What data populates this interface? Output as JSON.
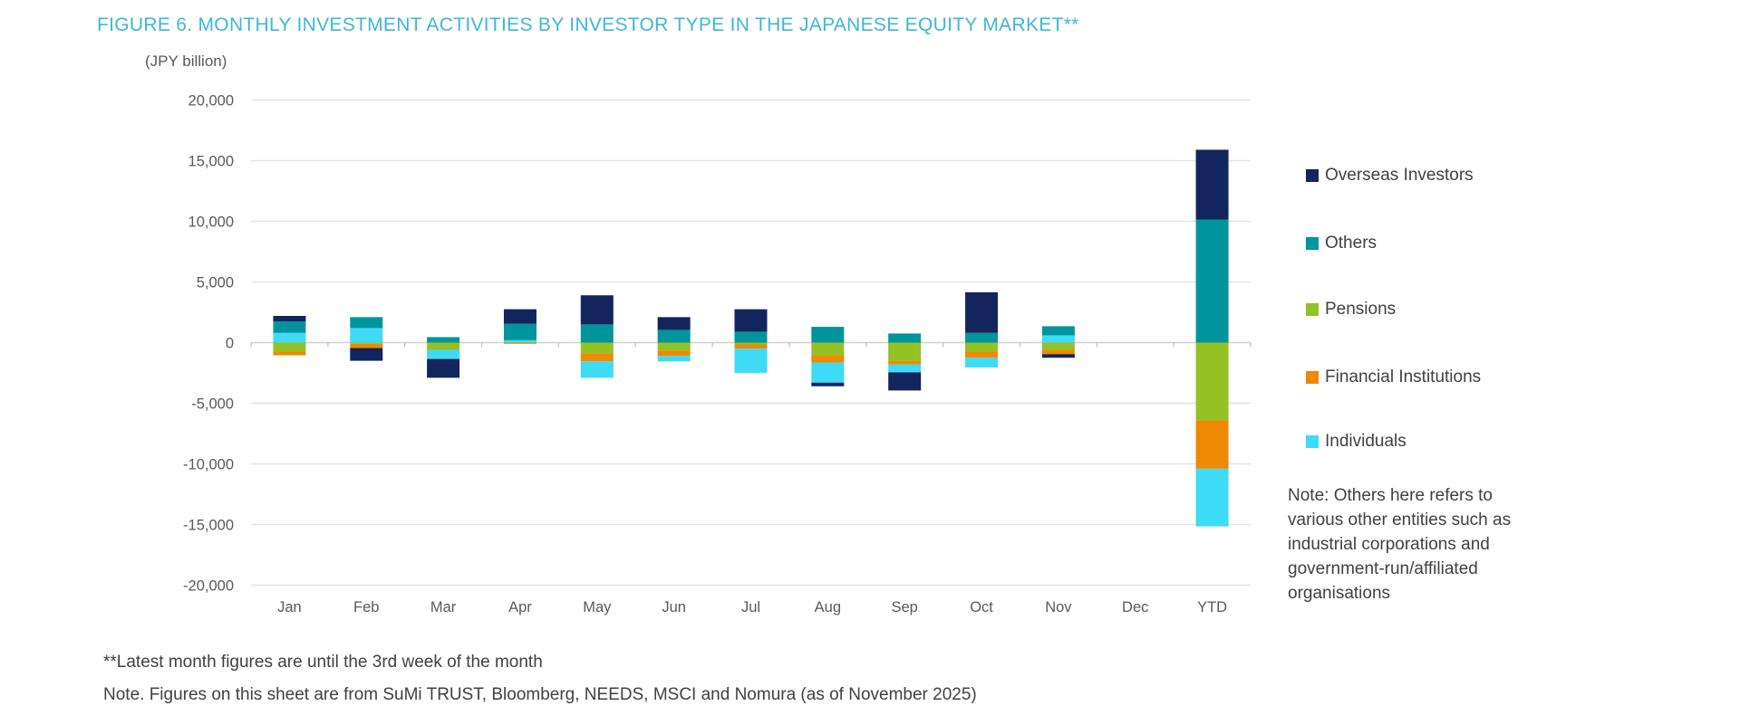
{
  "title": "FIGURE 6. MONTHLY INVESTMENT ACTIVITIES BY INVESTOR TYPE IN THE JAPANESE EQUITY MARKET**",
  "axis_unit": "(JPY billion)",
  "chart_data": {
    "type": "bar",
    "stacked": true,
    "title": "FIGURE 6. MONTHLY INVESTMENT ACTIVITIES BY INVESTOR TYPE IN THE JAPANESE EQUITY MARKET**",
    "ylabel": "(JPY billion)",
    "xlabel": "",
    "ylim": [
      -20000,
      20000
    ],
    "ytick_step": 5000,
    "grid": true,
    "legend_position": "right",
    "categories": [
      "Jan",
      "Feb",
      "Mar",
      "Apr",
      "May",
      "Jun",
      "Jul",
      "Aug",
      "Sep",
      "Oct",
      "Nov",
      "Dec",
      "YTD"
    ],
    "series": [
      {
        "name": "Overseas Investors",
        "color": "#12265d",
        "values": [
          450,
          -1050,
          -1550,
          1200,
          2400,
          1050,
          1850,
          -300,
          -1500,
          3350,
          -300,
          0,
          5750
        ]
      },
      {
        "name": "Others",
        "color": "#00949d",
        "values": [
          950,
          900,
          450,
          1350,
          1500,
          1050,
          900,
          1300,
          750,
          800,
          750,
          0,
          10150
        ]
      },
      {
        "name": "Pensions",
        "color": "#94c123",
        "values": [
          -750,
          -100,
          -600,
          0,
          -900,
          -650,
          -150,
          -1050,
          -1500,
          -750,
          -600,
          0,
          -6400
        ]
      },
      {
        "name": "Financial Institutions",
        "color": "#ee8903",
        "values": [
          -300,
          -350,
          0,
          -100,
          -650,
          -450,
          -350,
          -600,
          -300,
          -500,
          -350,
          0,
          -4000
        ]
      },
      {
        "name": "Individuals",
        "color": "#3edbf7",
        "values": [
          800,
          1200,
          -750,
          200,
          -1350,
          -450,
          -2000,
          -1650,
          -650,
          -800,
          600,
          0,
          -4750
        ]
      }
    ],
    "stack_order": [
      "Pensions",
      "Financial Institutions",
      "Individuals",
      "Others",
      "Overseas Investors"
    ]
  },
  "notes": {
    "legend_note": "Note: Others here refers to various other entities such as industrial corporations and government-run/affiliated organisations",
    "footnote1": "**Latest month figures are until the 3rd week of the month",
    "footnote2": "Note. Figures on this sheet are from SuMi TRUST, Bloomberg, NEEDS, MSCI and Nomura (as of November 2025)"
  },
  "colors": {
    "title": "#3eb7d7",
    "axis_text": "#58595b",
    "body_text": "#414042",
    "gridline": "#e4e4e4",
    "zero_line": "#cfcfcf",
    "tick": "#c4c4c4"
  }
}
